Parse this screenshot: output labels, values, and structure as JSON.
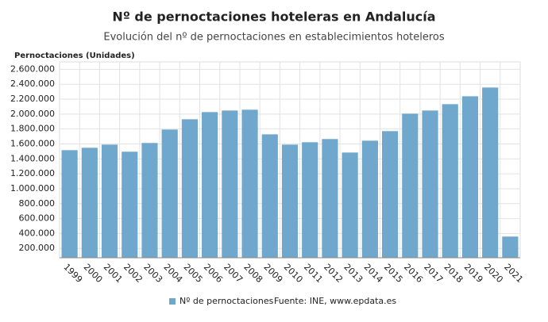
{
  "chart_data": {
    "type": "bar",
    "title": "Nº de pernoctaciones hoteleras en Andalucía",
    "subtitle": "Evolución del nº de pernoctaciones en establecimientos hoteleros",
    "y_label": "Pernoctaciones (Unidades)",
    "source": "Fuente: INE, www.epdata.es",
    "categories": [
      "1999",
      "2000",
      "2001",
      "2002",
      "2003",
      "2004",
      "2005",
      "2006",
      "2007",
      "2008",
      "2009",
      "2010",
      "2011",
      "2012",
      "2013",
      "2014",
      "2015",
      "2016",
      "2017",
      "2018",
      "2019",
      "2020",
      "2021"
    ],
    "series": [
      {
        "name": "Nº de pernoctaciones",
        "color": "#6fa8cc",
        "values": [
          1517000,
          1549000,
          1591000,
          1496000,
          1613000,
          1793000,
          1931000,
          2027000,
          2048000,
          2059000,
          1729000,
          1591000,
          1623000,
          1666000,
          1485000,
          1644000,
          1772000,
          2006000,
          2048000,
          2133000,
          2239000,
          2356000,
          359000
        ]
      }
    ],
    "ylim": [
      75000,
      2700000
    ],
    "yticks": [
      {
        "value": 200000,
        "label": "200.000"
      },
      {
        "value": 400000,
        "label": "400.000"
      },
      {
        "value": 600000,
        "label": "600.000"
      },
      {
        "value": 800000,
        "label": "800.000"
      },
      {
        "value": 1000000,
        "label": "1.000.000"
      },
      {
        "value": 1200000,
        "label": "1.200.000"
      },
      {
        "value": 1400000,
        "label": "1.400.000"
      },
      {
        "value": 1600000,
        "label": "1.600.000"
      },
      {
        "value": 1800000,
        "label": "1.800.000"
      },
      {
        "value": 2000000,
        "label": "2.000.000"
      },
      {
        "value": 2200000,
        "label": "2.200.000"
      },
      {
        "value": 2400000,
        "label": "2.400.000"
      },
      {
        "value": 2600000,
        "label": "2.600.000"
      }
    ],
    "grid": true
  }
}
